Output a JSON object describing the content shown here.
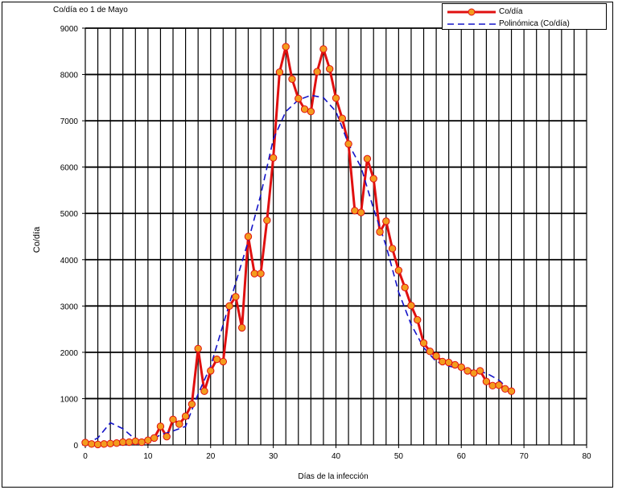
{
  "chart_data": {
    "type": "line",
    "title": "Co/día eo 1 de Mayo",
    "xlabel": "Días de la infección",
    "ylabel": "Co/día",
    "xlim": [
      0,
      80
    ],
    "ylim": [
      0,
      9000
    ],
    "xticks": [
      "0",
      "10",
      "20",
      "30",
      "40",
      "50",
      "60",
      "70",
      "80"
    ],
    "yticks": [
      "0",
      "1000",
      "2000",
      "3000",
      "4000",
      "5000",
      "6000",
      "7000",
      "8000",
      "9000"
    ],
    "grid": true,
    "legend_position": "top-right",
    "series": [
      {
        "name": "Co/día",
        "color": "#e01010",
        "marker_color": "#f39c1e",
        "x": [
          0,
          1,
          2,
          3,
          4,
          5,
          6,
          7,
          8,
          9,
          10,
          11,
          12,
          13,
          14,
          15,
          16,
          17,
          18,
          19,
          20,
          21,
          22,
          23,
          24,
          25,
          26,
          27,
          28,
          29,
          30,
          31,
          32,
          33,
          34,
          35,
          36,
          37,
          38,
          39,
          40,
          41,
          42,
          43,
          44,
          45,
          46,
          47,
          48,
          49,
          50,
          51,
          52,
          53,
          54,
          55,
          56,
          57,
          58,
          59,
          60,
          61,
          62,
          63,
          64,
          65,
          66,
          67,
          68
        ],
        "y": [
          50,
          20,
          10,
          20,
          30,
          40,
          60,
          60,
          80,
          60,
          100,
          150,
          400,
          180,
          550,
          450,
          620,
          880,
          2080,
          1160,
          1600,
          1850,
          1800,
          3000,
          3200,
          2530,
          4500,
          3700,
          3700,
          4850,
          6200,
          8050,
          8600,
          7900,
          7480,
          7250,
          7200,
          8060,
          8550,
          8120,
          7490,
          7050,
          6500,
          5060,
          5020,
          6180,
          5750,
          4600,
          4830,
          4240,
          3770,
          3400,
          3010,
          2700,
          2200,
          2020,
          1920,
          1800,
          1780,
          1730,
          1680,
          1600,
          1550,
          1600,
          1370,
          1280,
          1290,
          1210,
          1160
        ]
      },
      {
        "name": "Polinómica (Co/día)",
        "color": "#1414c8",
        "x": [
          0,
          2,
          4,
          6,
          8,
          10,
          12,
          14,
          16,
          18,
          20,
          22,
          24,
          26,
          28,
          30,
          32,
          34,
          36,
          38,
          40,
          42,
          44,
          46,
          48,
          50,
          52,
          54,
          56,
          58,
          60,
          62,
          64,
          66,
          68
        ],
        "y": [
          20,
          150,
          480,
          350,
          120,
          60,
          220,
          300,
          400,
          1100,
          1700,
          2600,
          3500,
          4400,
          5400,
          6600,
          7200,
          7450,
          7550,
          7500,
          7200,
          6500,
          6000,
          5100,
          4300,
          3300,
          2600,
          2100,
          1800,
          1700,
          1650,
          1600,
          1550,
          1400,
          1150
        ]
      }
    ]
  }
}
